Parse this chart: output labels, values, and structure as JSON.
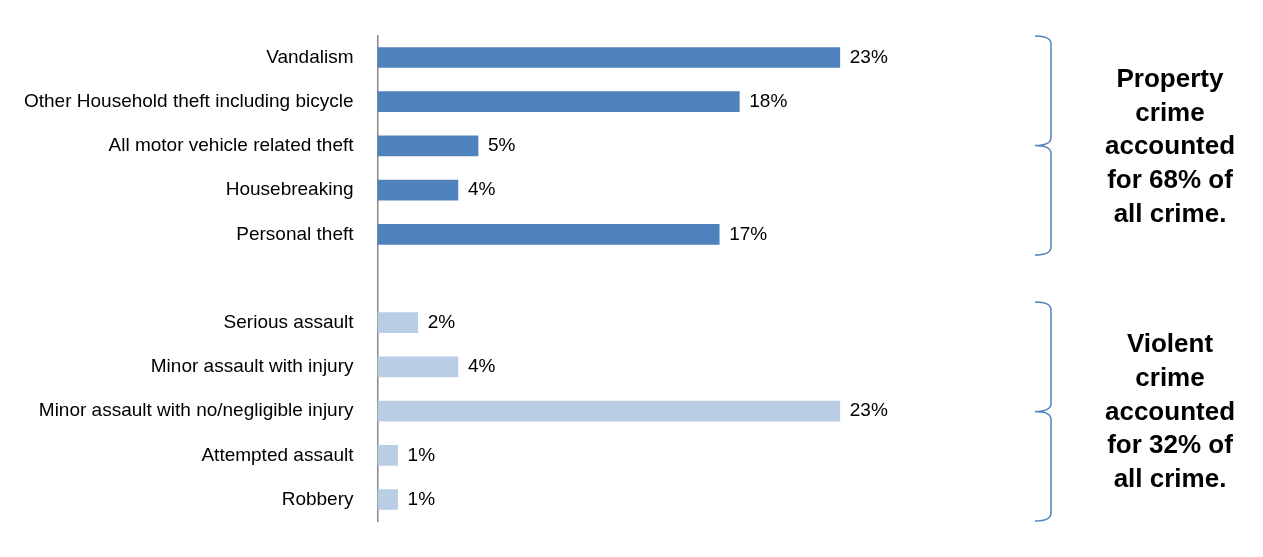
{
  "chart_data": {
    "type": "bar",
    "orientation": "horizontal",
    "categories": [
      "Vandalism",
      "Other Household theft including bicycle",
      "All motor vehicle related theft",
      "Housebreaking",
      "Personal theft",
      null,
      "Serious assault",
      "Minor assault with injury",
      "Minor assault with no/negligible injury",
      "Attempted assault",
      "Robbery"
    ],
    "values": [
      23,
      18,
      5,
      4,
      17,
      null,
      2,
      4,
      23,
      1,
      1
    ],
    "value_labels": [
      "23%",
      "18%",
      "5%",
      "4%",
      "17%",
      null,
      "2%",
      "4%",
      "23%",
      "1%",
      "1%"
    ],
    "colors": [
      "#4f81bd",
      "#4f81bd",
      "#4f81bd",
      "#4f81bd",
      "#4f81bd",
      null,
      "#b9cde5",
      "#b9cde5",
      "#b9cde5",
      "#b9cde5",
      "#b9cde5"
    ],
    "annotations": [
      "Property crime accounted for 68% of all crime.",
      "Violent crime accounted for 32% of all crime."
    ],
    "grid": false,
    "legend": false
  }
}
